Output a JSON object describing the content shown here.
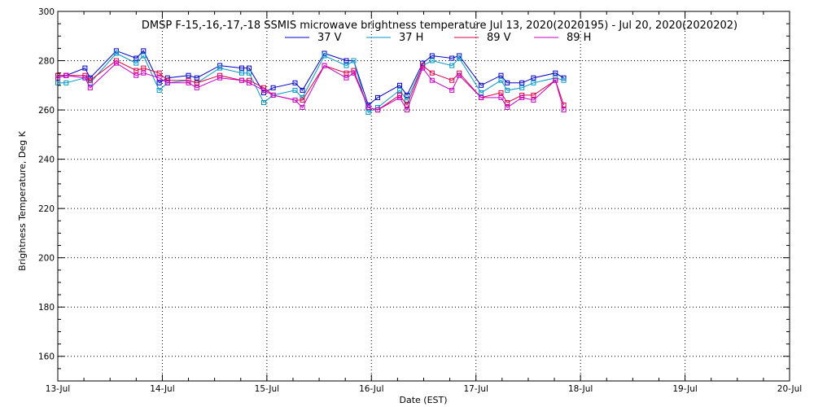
{
  "chart_data": {
    "type": "line",
    "title": "DMSP F-15,-16,-17,-18 SSMIS microwave brightness temperature Jul 13, 2020(2020195) - Jul 20, 2020(2020202)",
    "xlabel": "Date (EST)",
    "ylabel": "Brightness Temperature, Deg K",
    "xlim": [
      0,
      7
    ],
    "ylim": [
      150,
      300
    ],
    "x_ticks": [
      {
        "value": 0,
        "label": "13-Jul"
      },
      {
        "value": 1,
        "label": "14-Jul"
      },
      {
        "value": 2,
        "label": "15-Jul"
      },
      {
        "value": 3,
        "label": "16-Jul"
      },
      {
        "value": 4,
        "label": "17-Jul"
      },
      {
        "value": 5,
        "label": "18-Jul"
      },
      {
        "value": 6,
        "label": "19-Jul"
      },
      {
        "value": 7,
        "label": "20-Jul"
      }
    ],
    "y_ticks": [
      160,
      180,
      200,
      220,
      240,
      260,
      280,
      300
    ],
    "grid": true,
    "legend_position": "top",
    "x_unit_note": "x values are days since 13-Jul 00:00 EST",
    "series": [
      {
        "name": "37 V",
        "color": "#0000c8",
        "points": [
          [
            0.0,
            274
          ],
          [
            0.08,
            274
          ],
          [
            0.26,
            277
          ],
          [
            0.31,
            273
          ],
          [
            0.56,
            284
          ],
          [
            0.75,
            281
          ],
          [
            0.82,
            284
          ],
          [
            0.97,
            271
          ],
          [
            1.05,
            273
          ],
          [
            1.25,
            274
          ],
          [
            1.33,
            273
          ],
          [
            1.55,
            278
          ],
          [
            1.76,
            277
          ],
          [
            1.83,
            277
          ],
          [
            1.97,
            267
          ],
          [
            2.06,
            269
          ],
          [
            2.27,
            271
          ],
          [
            2.34,
            268
          ],
          [
            2.55,
            283
          ],
          [
            2.76,
            280
          ],
          [
            2.83,
            280
          ],
          [
            2.97,
            262
          ],
          [
            3.06,
            265
          ],
          [
            3.27,
            270
          ],
          [
            3.34,
            266
          ],
          [
            3.49,
            279
          ],
          [
            3.58,
            282
          ],
          [
            3.77,
            281
          ],
          [
            3.84,
            282
          ],
          [
            4.05,
            270
          ],
          [
            4.24,
            274
          ],
          [
            4.3,
            271
          ],
          [
            4.44,
            271
          ],
          [
            4.55,
            273
          ],
          [
            4.76,
            275
          ],
          [
            4.84,
            273
          ]
        ]
      },
      {
        "name": "37 H",
        "color": "#0096c8",
        "points": [
          [
            0.0,
            271
          ],
          [
            0.08,
            271
          ],
          [
            0.26,
            273
          ],
          [
            0.31,
            271
          ],
          [
            0.56,
            283
          ],
          [
            0.75,
            279
          ],
          [
            0.82,
            282
          ],
          [
            0.97,
            268
          ],
          [
            1.05,
            271
          ],
          [
            1.25,
            272
          ],
          [
            1.33,
            271
          ],
          [
            1.55,
            277
          ],
          [
            1.76,
            275
          ],
          [
            1.83,
            275
          ],
          [
            1.97,
            263
          ],
          [
            2.06,
            266
          ],
          [
            2.27,
            268
          ],
          [
            2.34,
            265
          ],
          [
            2.55,
            282
          ],
          [
            2.76,
            278
          ],
          [
            2.83,
            280
          ],
          [
            2.97,
            259
          ],
          [
            3.06,
            261
          ],
          [
            3.27,
            268
          ],
          [
            3.34,
            264
          ],
          [
            3.49,
            278
          ],
          [
            3.58,
            280
          ],
          [
            3.77,
            278
          ],
          [
            3.84,
            281
          ],
          [
            4.05,
            267
          ],
          [
            4.24,
            272
          ],
          [
            4.3,
            268
          ],
          [
            4.44,
            269
          ],
          [
            4.55,
            271
          ],
          [
            4.76,
            273
          ],
          [
            4.84,
            272
          ]
        ]
      },
      {
        "name": "89 V",
        "color": "#dc0046",
        "points": [
          [
            0.0,
            274
          ],
          [
            0.08,
            274
          ],
          [
            0.26,
            274
          ],
          [
            0.31,
            272
          ],
          [
            0.56,
            280
          ],
          [
            0.75,
            276
          ],
          [
            0.82,
            277
          ],
          [
            0.97,
            275
          ],
          [
            1.05,
            272
          ],
          [
            1.25,
            272
          ],
          [
            1.33,
            271
          ],
          [
            1.55,
            274
          ],
          [
            1.76,
            272
          ],
          [
            1.83,
            272
          ],
          [
            1.97,
            269
          ],
          [
            2.06,
            266
          ],
          [
            2.27,
            264
          ],
          [
            2.34,
            264
          ],
          [
            2.55,
            278
          ],
          [
            2.76,
            275
          ],
          [
            2.83,
            276
          ],
          [
            2.97,
            261
          ],
          [
            3.06,
            260
          ],
          [
            3.27,
            266
          ],
          [
            3.34,
            262
          ],
          [
            3.49,
            278
          ],
          [
            3.58,
            275
          ],
          [
            3.77,
            272
          ],
          [
            3.84,
            275
          ],
          [
            4.05,
            265
          ],
          [
            4.24,
            267
          ],
          [
            4.3,
            263
          ],
          [
            4.44,
            266
          ],
          [
            4.55,
            266
          ],
          [
            4.76,
            272
          ],
          [
            4.84,
            262
          ]
        ]
      },
      {
        "name": "89 H",
        "color": "#c800c8",
        "points": [
          [
            0.0,
            273
          ],
          [
            0.08,
            274
          ],
          [
            0.26,
            273
          ],
          [
            0.31,
            269
          ],
          [
            0.56,
            279
          ],
          [
            0.75,
            274
          ],
          [
            0.82,
            275
          ],
          [
            0.97,
            273
          ],
          [
            1.05,
            271
          ],
          [
            1.25,
            271
          ],
          [
            1.33,
            269
          ],
          [
            1.55,
            273
          ],
          [
            1.76,
            272
          ],
          [
            1.83,
            271
          ],
          [
            1.97,
            268
          ],
          [
            2.06,
            266
          ],
          [
            2.27,
            264
          ],
          [
            2.34,
            261
          ],
          [
            2.55,
            278
          ],
          [
            2.76,
            273
          ],
          [
            2.83,
            275
          ],
          [
            2.97,
            261
          ],
          [
            3.06,
            260
          ],
          [
            3.27,
            265
          ],
          [
            3.34,
            260
          ],
          [
            3.49,
            277
          ],
          [
            3.58,
            272
          ],
          [
            3.77,
            268
          ],
          [
            3.84,
            274
          ],
          [
            4.05,
            265
          ],
          [
            4.24,
            265
          ],
          [
            4.3,
            261
          ],
          [
            4.44,
            265
          ],
          [
            4.55,
            264
          ],
          [
            4.76,
            272
          ],
          [
            4.84,
            260
          ]
        ]
      }
    ]
  }
}
